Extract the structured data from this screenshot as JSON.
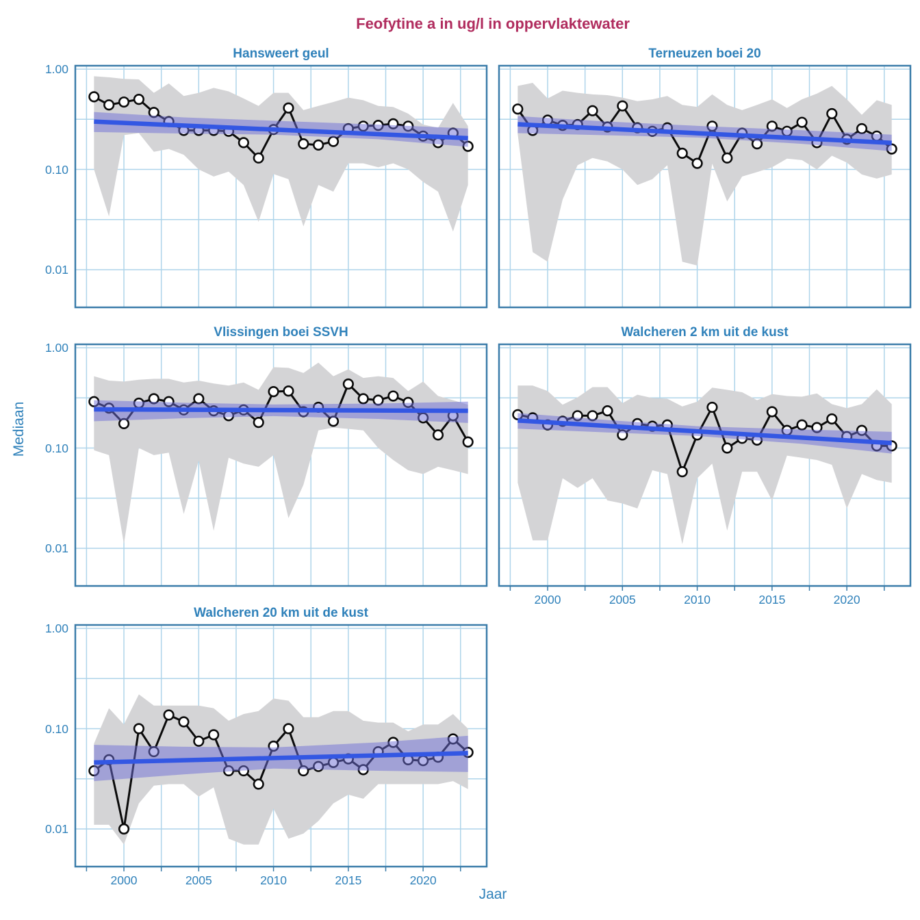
{
  "chart_data": {
    "type": "line",
    "title": "Feofytine a in ug/l in oppervlaktewater",
    "xlabel": "Jaar",
    "ylabel": "Mediaan",
    "y_scale": "log10",
    "x": [
      1998,
      1999,
      2000,
      2001,
      2002,
      2003,
      2004,
      2005,
      2006,
      2007,
      2008,
      2009,
      2010,
      2011,
      2012,
      2013,
      2014,
      2015,
      2016,
      2017,
      2018,
      2019,
      2020,
      2021,
      2022,
      2023
    ],
    "xlim": [
      1996.75,
      2024.25
    ],
    "ylim": [
      0.0042,
      1.08
    ],
    "x_tick_years": [
      2000,
      2005,
      2010,
      2015,
      2020
    ],
    "x_tick_labels": [
      "2000",
      "2005",
      "2010",
      "2015",
      "2020"
    ],
    "y_tick_values": [
      1.0,
      0.1,
      0.01
    ],
    "y_tick_labels": [
      "1.00",
      "0.10",
      "0.01"
    ],
    "grid_years": [
      1997.5,
      2000,
      2002.5,
      2005,
      2007.5,
      2010,
      2012.5,
      2015,
      2017.5,
      2020,
      2022.5
    ],
    "grid_values": [
      1.0,
      0.3162,
      0.1,
      0.03162,
      0.01
    ],
    "grid": "on",
    "legend": "none",
    "ci_anchor_years": [
      1998,
      2004,
      2010,
      2017,
      2023
    ],
    "panels": [
      {
        "name": "hansweert-geul",
        "title": "Hansweert geul",
        "median": [
          0.53,
          0.44,
          0.47,
          0.5,
          0.37,
          0.3,
          0.245,
          0.245,
          0.245,
          0.24,
          0.185,
          0.13,
          0.25,
          0.41,
          0.18,
          0.175,
          0.19,
          0.255,
          0.27,
          0.275,
          0.285,
          0.27,
          0.215,
          0.185,
          0.23,
          0.17
        ],
        "gray_upper": [
          0.85,
          0.83,
          0.8,
          0.79,
          0.58,
          0.72,
          0.54,
          0.58,
          0.65,
          0.6,
          0.51,
          0.43,
          0.58,
          0.58,
          0.39,
          0.43,
          0.47,
          0.52,
          0.49,
          0.43,
          0.42,
          0.36,
          0.28,
          0.26,
          0.46,
          0.27
        ],
        "gray_lower": [
          0.1,
          0.034,
          0.22,
          0.23,
          0.15,
          0.16,
          0.14,
          0.1,
          0.085,
          0.095,
          0.07,
          0.03,
          0.09,
          0.08,
          0.027,
          0.07,
          0.06,
          0.115,
          0.115,
          0.105,
          0.115,
          0.1,
          0.075,
          0.06,
          0.024,
          0.07
        ],
        "ci_top": [
          0.374,
          0.33,
          0.306,
          0.28,
          0.256
        ],
        "ci_bottom": [
          0.236,
          0.228,
          0.222,
          0.2,
          0.168
        ],
        "trend_start": 0.3,
        "trend_end": 0.205
      },
      {
        "name": "terneuzen-boei-20",
        "title": "Terneuzen boei 20",
        "median": [
          0.4,
          0.245,
          0.31,
          0.275,
          0.28,
          0.385,
          0.265,
          0.43,
          0.26,
          0.24,
          0.26,
          0.145,
          0.115,
          0.27,
          0.13,
          0.23,
          0.18,
          0.27,
          0.24,
          0.295,
          0.185,
          0.36,
          0.2,
          0.255,
          0.215,
          0.16
        ],
        "gray_upper": [
          0.68,
          0.73,
          0.51,
          0.61,
          0.58,
          0.56,
          0.55,
          0.52,
          0.48,
          0.5,
          0.54,
          0.44,
          0.42,
          0.56,
          0.44,
          0.39,
          0.44,
          0.5,
          0.41,
          0.5,
          0.57,
          0.68,
          0.5,
          0.35,
          0.49,
          0.44
        ],
        "gray_lower": [
          0.225,
          0.015,
          0.012,
          0.05,
          0.11,
          0.13,
          0.12,
          0.1,
          0.07,
          0.08,
          0.11,
          0.012,
          0.011,
          0.114,
          0.048,
          0.085,
          0.094,
          0.105,
          0.128,
          0.124,
          0.1,
          0.137,
          0.117,
          0.089,
          0.081,
          0.089
        ],
        "ci_top": [
          0.34,
          0.3,
          0.272,
          0.246,
          0.222
        ],
        "ci_bottom": [
          0.23,
          0.219,
          0.208,
          0.18,
          0.152
        ],
        "trend_start": 0.282,
        "trend_end": 0.184
      },
      {
        "name": "vlissingen-boei-ssvh",
        "title": "Vlissingen boei SSVH",
        "median": [
          0.29,
          0.25,
          0.175,
          0.28,
          0.31,
          0.29,
          0.24,
          0.31,
          0.235,
          0.21,
          0.24,
          0.18,
          0.365,
          0.37,
          0.23,
          0.255,
          0.185,
          0.435,
          0.31,
          0.3,
          0.33,
          0.285,
          0.2,
          0.135,
          0.21,
          0.115
        ],
        "gray_upper": [
          0.52,
          0.47,
          0.46,
          0.48,
          0.49,
          0.49,
          0.45,
          0.47,
          0.44,
          0.42,
          0.45,
          0.38,
          0.64,
          0.63,
          0.56,
          0.71,
          0.52,
          0.61,
          0.5,
          0.52,
          0.5,
          0.37,
          0.46,
          0.33,
          0.3,
          0.27
        ],
        "gray_lower": [
          0.095,
          0.085,
          0.011,
          0.1,
          0.085,
          0.09,
          0.022,
          0.075,
          0.015,
          0.08,
          0.07,
          0.065,
          0.085,
          0.02,
          0.043,
          0.15,
          0.16,
          0.155,
          0.15,
          0.1,
          0.076,
          0.06,
          0.055,
          0.065,
          0.06,
          0.055
        ],
        "ci_top": [
          0.3,
          0.283,
          0.272,
          0.278,
          0.29
        ],
        "ci_bottom": [
          0.185,
          0.198,
          0.208,
          0.195,
          0.178
        ],
        "trend_start": 0.243,
        "trend_end": 0.235
      },
      {
        "name": "walcheren-2-km-uit-de-kust",
        "title": "Walcheren 2 km uit de kust",
        "median": [
          0.215,
          0.2,
          0.17,
          0.185,
          0.21,
          0.21,
          0.235,
          0.135,
          0.175,
          0.165,
          0.17,
          0.058,
          0.135,
          0.255,
          0.1,
          0.125,
          0.12,
          0.23,
          0.15,
          0.17,
          0.16,
          0.195,
          0.13,
          0.15,
          0.105,
          0.105
        ],
        "gray_upper": [
          0.42,
          0.42,
          0.37,
          0.27,
          0.32,
          0.405,
          0.405,
          0.28,
          0.34,
          0.315,
          0.31,
          0.26,
          0.29,
          0.4,
          0.38,
          0.36,
          0.3,
          0.345,
          0.33,
          0.325,
          0.35,
          0.274,
          0.25,
          0.274,
          0.385,
          0.274
        ],
        "gray_lower": [
          0.045,
          0.012,
          0.012,
          0.05,
          0.04,
          0.05,
          0.03,
          0.028,
          0.025,
          0.06,
          0.055,
          0.011,
          0.05,
          0.07,
          0.015,
          0.058,
          0.058,
          0.03,
          0.084,
          0.08,
          0.076,
          0.068,
          0.025,
          0.055,
          0.048,
          0.045
        ],
        "ci_top": [
          0.223,
          0.19,
          0.165,
          0.153,
          0.145
        ],
        "ci_bottom": [
          0.156,
          0.143,
          0.132,
          0.11,
          0.088
        ],
        "trend_start": 0.188,
        "trend_end": 0.112
      },
      {
        "name": "walcheren-20-km-uit-de-kust",
        "title": "Walcheren 20 km uit de kust",
        "median": [
          0.038,
          0.049,
          0.01,
          0.1,
          0.059,
          0.137,
          0.117,
          0.075,
          0.087,
          0.038,
          0.038,
          0.028,
          0.067,
          0.1,
          0.038,
          0.042,
          0.046,
          0.05,
          0.039,
          0.059,
          0.073,
          0.049,
          0.048,
          0.052,
          0.079,
          0.058
        ],
        "gray_upper": [
          0.071,
          0.16,
          0.11,
          0.22,
          0.17,
          0.17,
          0.17,
          0.17,
          0.16,
          0.12,
          0.14,
          0.15,
          0.2,
          0.19,
          0.13,
          0.13,
          0.15,
          0.15,
          0.12,
          0.115,
          0.115,
          0.094,
          0.11,
          0.11,
          0.14,
          0.1
        ],
        "gray_lower": [
          0.011,
          0.011,
          0.007,
          0.018,
          0.027,
          0.028,
          0.028,
          0.021,
          0.026,
          0.008,
          0.007,
          0.007,
          0.016,
          0.008,
          0.009,
          0.012,
          0.018,
          0.022,
          0.02,
          0.028,
          0.028,
          0.028,
          0.028,
          0.028,
          0.03,
          0.025
        ],
        "ci_top": [
          0.069,
          0.066,
          0.065,
          0.073,
          0.085
        ],
        "ci_bottom": [
          0.03,
          0.035,
          0.04,
          0.038,
          0.037
        ],
        "trend_start": 0.046,
        "trend_end": 0.057
      }
    ],
    "colors": {
      "title": "#b02c5e",
      "axis_text": "#2f81ba",
      "panel_border": "#3a7ca9",
      "gridline": "#aed4ea",
      "gray_band": "#d4d4d6",
      "ci_band": "rgba(109,109,213,0.5)",
      "trend_line": "#3357e3",
      "median_line": "#0a0a0a",
      "marker_fill": "#ffffff"
    }
  }
}
